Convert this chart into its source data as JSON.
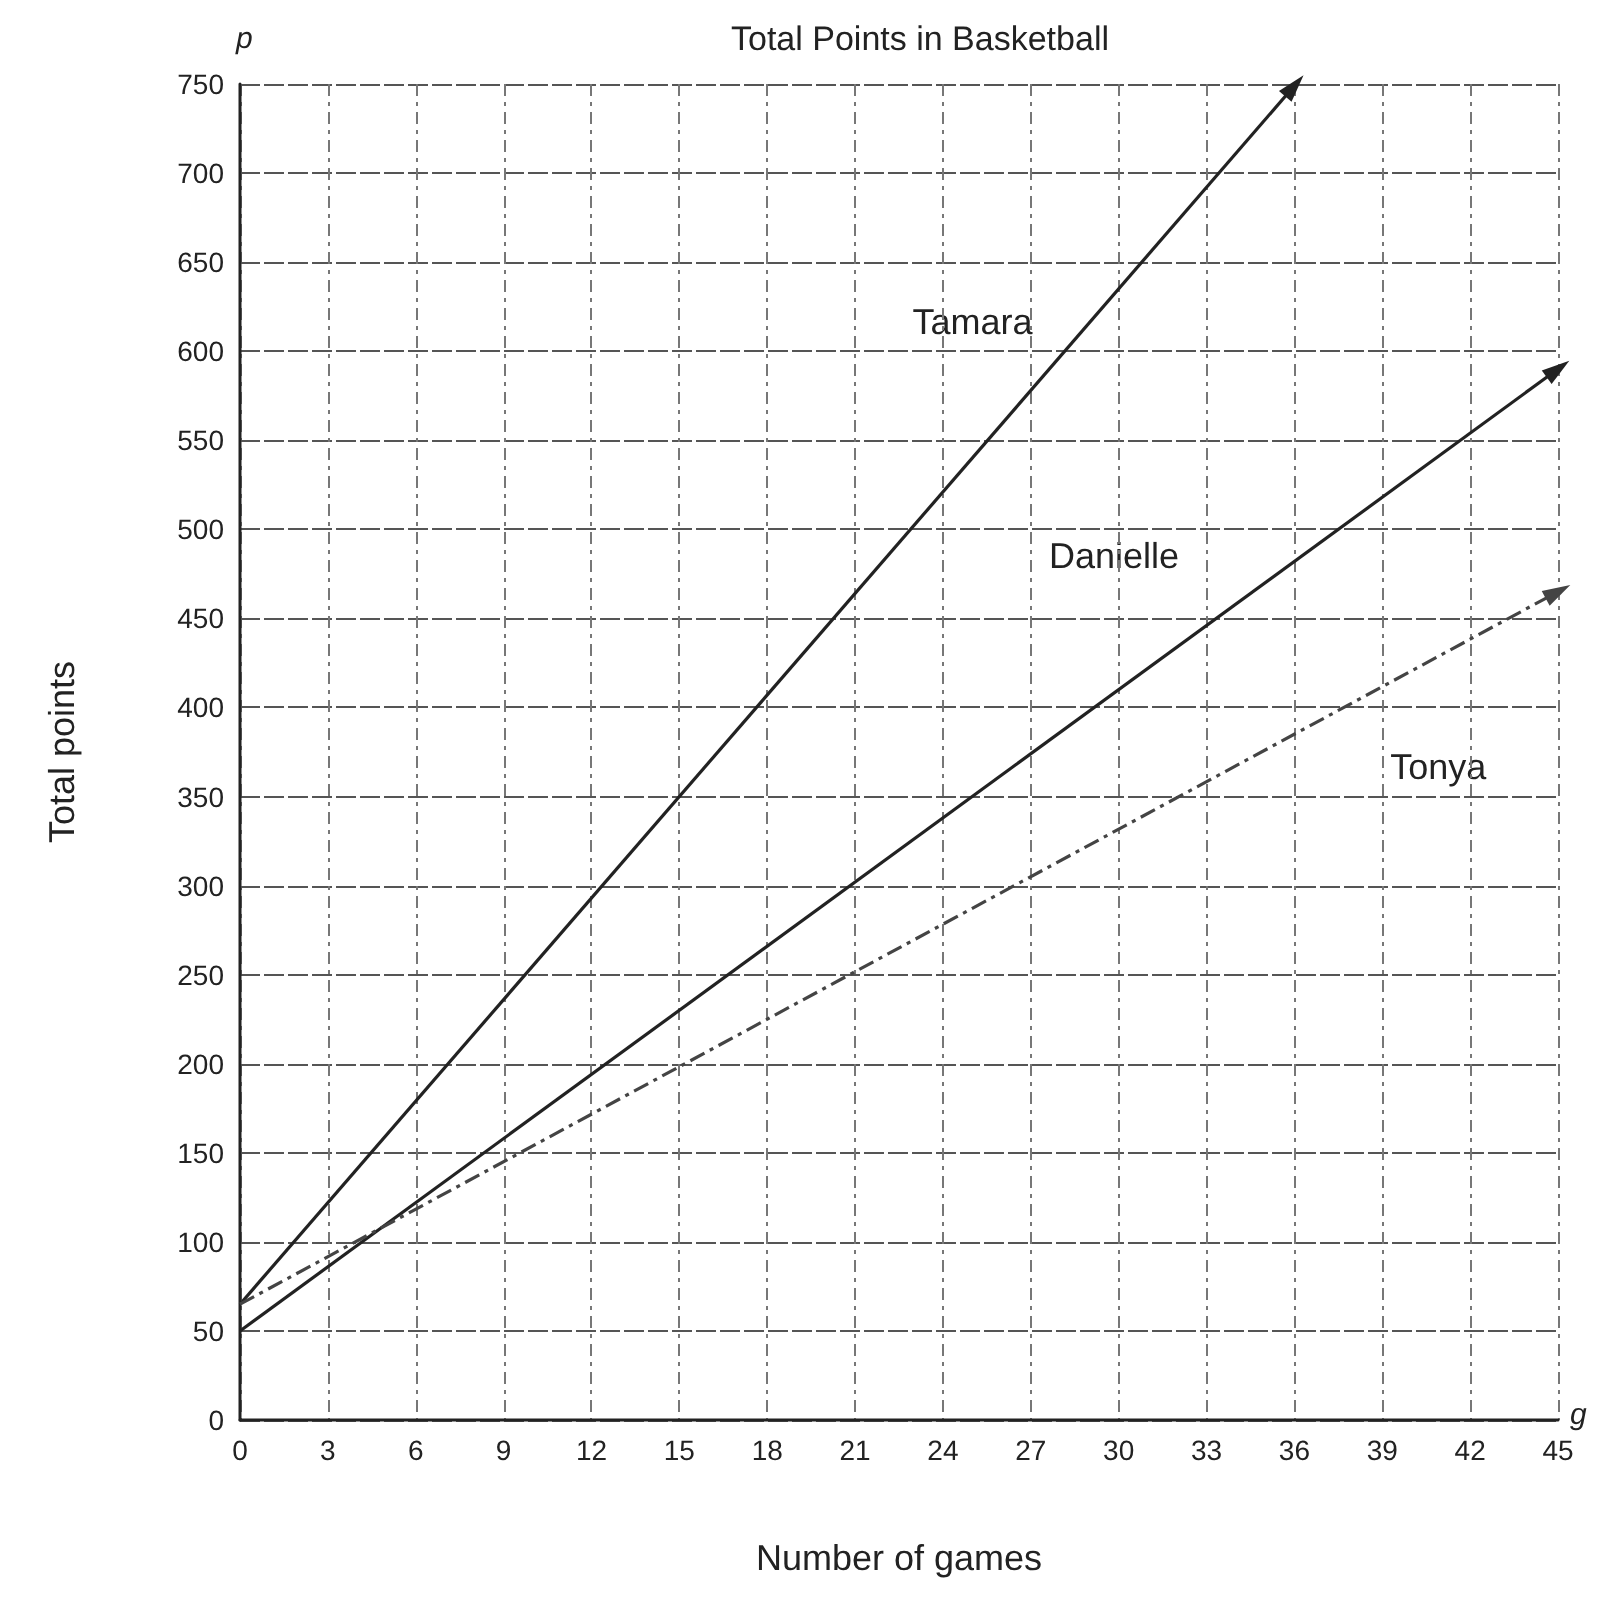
{
  "chart_data": {
    "type": "line",
    "title": "Total Points in Basketball",
    "xlabel": "Number of games",
    "ylabel": "Total points",
    "annotations": [
      "p",
      "g"
    ],
    "series": [
      {
        "name": "Tamara",
        "color": "#222222",
        "x": [
          0,
          36
        ],
        "values": [
          65,
          749
        ],
        "line_style": "solid"
      },
      {
        "name": "Danielle",
        "color": "#222222",
        "x": [
          0,
          45
        ],
        "values": [
          50,
          590
        ],
        "line_style": "solid"
      },
      {
        "name": "Tonya",
        "color": "#444444",
        "x": [
          0,
          45
        ],
        "values": [
          65,
          465
        ],
        "line_style": "dashed"
      }
    ],
    "xlim": [
      0,
      45
    ],
    "xticks": [
      0,
      3,
      6,
      9,
      12,
      15,
      18,
      21,
      24,
      27,
      30,
      33,
      36,
      39,
      42,
      45
    ],
    "ylim": [
      0,
      750
    ],
    "yticks": [
      0,
      50,
      100,
      150,
      200,
      250,
      300,
      350,
      400,
      450,
      500,
      550,
      600,
      650,
      700,
      750
    ],
    "grid": true,
    "legend": false
  }
}
